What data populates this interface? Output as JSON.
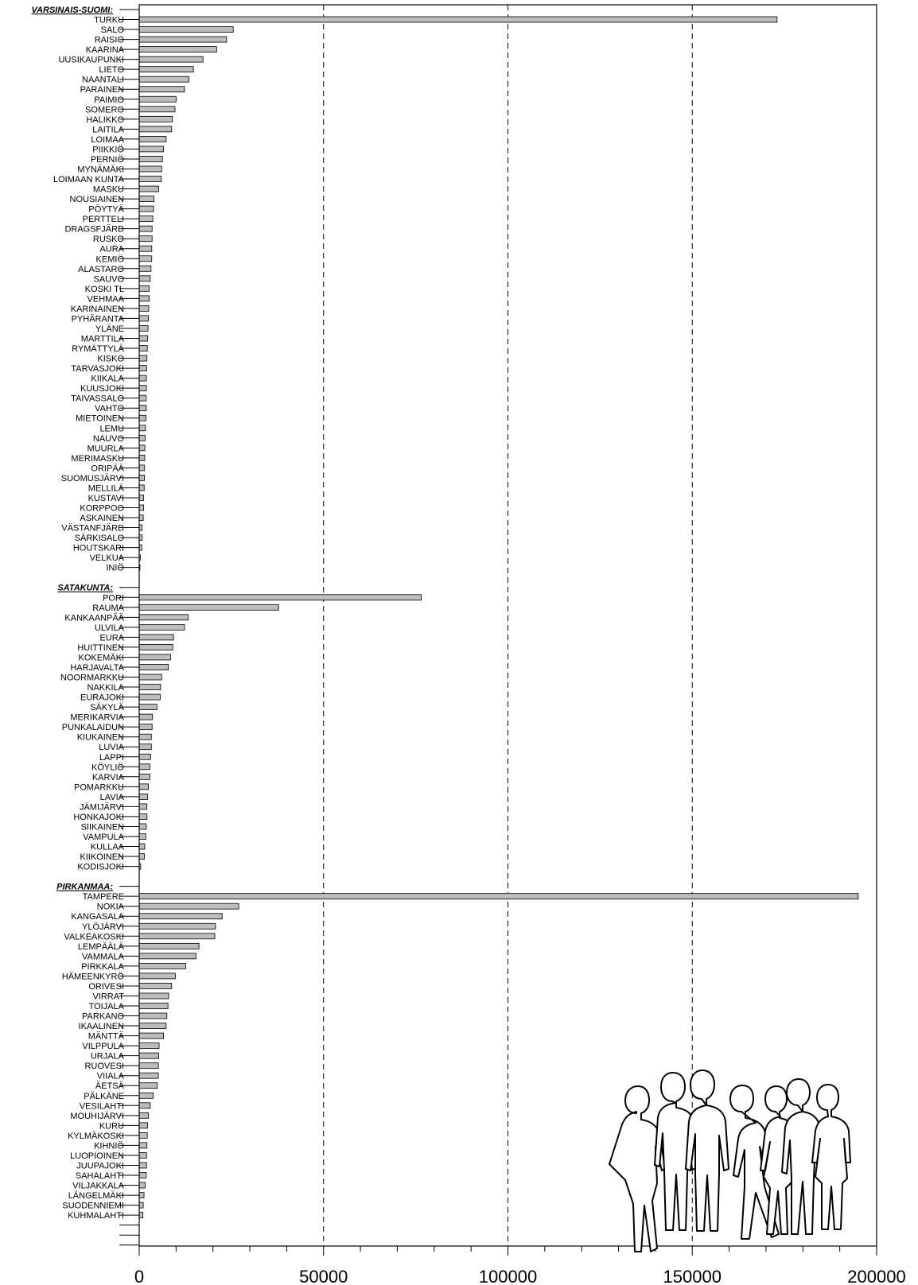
{
  "chart_data": {
    "type": "bar",
    "orientation": "horizontal",
    "title": "",
    "xlabel": "",
    "ylabel": "",
    "xlim": [
      0,
      200000
    ],
    "xticks": [
      0,
      50000,
      100000,
      150000,
      200000
    ],
    "tick_labels": [
      "0",
      "50000",
      "100000",
      "150000",
      "200000"
    ],
    "grid": "vertical dashed at 50000, 100000, 150000",
    "legend": "none",
    "bar_color": "#bdbdbd",
    "icon": "people-silhouette-icon",
    "groups": [
      {
        "name": "VARSINAIS-SUOMI:",
        "categories": [
          "TURKU",
          "SALO",
          "RAISIO",
          "KAARINA",
          "UUSIKAUPUNKI",
          "LIETO",
          "NAANTALI",
          "PARAINEN",
          "PAIMIO",
          "SOMERO",
          "HALIKKO",
          "LAITILA",
          "LOIMAA",
          "PIIKKIÖ",
          "PERNIÖ",
          "MYNÄMÄKI",
          "LOIMAAN KUNTA",
          "MASKU",
          "NOUSIAINEN",
          "PÖYTYÄ",
          "PERTTELI",
          "DRAGSFJÄRD",
          "RUSKO",
          "AURA",
          "KEMIÖ",
          "ALASTARO",
          "SAUVO",
          "KOSKI TL",
          "VEHMAA",
          "KARINAINEN",
          "PYHÄRANTA",
          "YLÄNE",
          "MARTTILA",
          "RYMÄTTYLÄ",
          "KISKO",
          "TARVASJOKI",
          "KIIKALA",
          "KUUSJOKI",
          "TAIVASSALO",
          "VAHTO",
          "MIETOINEN",
          "LEMU",
          "NAUVO",
          "MUURLA",
          "MERIMASKU",
          "ORIPÄÄ",
          "SUOMUSJÄRVI",
          "MELLILÄ",
          "KUSTAVI",
          "KORPPOO",
          "ASKAINEN",
          "VÄSTANFJÄRD",
          "SÄRKISALO",
          "HOUTSKARI",
          "VELKUA",
          "INIÖ"
        ],
        "values": [
          173000,
          25500,
          23700,
          21000,
          17300,
          14700,
          13500,
          12300,
          10000,
          9700,
          9000,
          8800,
          7300,
          6600,
          6300,
          6100,
          6000,
          5300,
          4000,
          3900,
          3700,
          3500,
          3500,
          3400,
          3400,
          3200,
          3000,
          2700,
          2700,
          2600,
          2500,
          2400,
          2300,
          2200,
          2100,
          2000,
          1950,
          1950,
          1900,
          1900,
          1850,
          1700,
          1600,
          1550,
          1500,
          1450,
          1400,
          1350,
          1200,
          1200,
          1100,
          800,
          800,
          700,
          300,
          200
        ]
      },
      {
        "name": "SATAKUNTA:",
        "categories": [
          "PORI",
          "RAUMA",
          "KANKAANPÄÄ",
          "ULVILA",
          "EURA",
          "HUITTINEN",
          "KOKEMÄKI",
          "HARJAVALTA",
          "NOORMARKKU",
          "NAKKILA",
          "EURAJOKI",
          "SÄKYLÄ",
          "MERIKARVIA",
          "PUNKALAIDUN",
          "KIUKAINEN",
          "LUVIA",
          "LAPPI",
          "KÖYLIÖ",
          "KARVIA",
          "POMARKKU",
          "LAVIA",
          "JÄMIJÄRVI",
          "HONKAJOKI",
          "SIIKAINEN",
          "VAMPULA",
          "KULLAA",
          "KIIKOINEN",
          "KODISJOKI"
        ],
        "values": [
          76500,
          37800,
          13300,
          12300,
          9300,
          9100,
          8500,
          7900,
          6100,
          5800,
          5700,
          4800,
          3600,
          3500,
          3300,
          3300,
          3100,
          2900,
          2900,
          2500,
          2300,
          2100,
          2100,
          1900,
          1800,
          1500,
          1400,
          400
        ]
      },
      {
        "name": "PIRKANMAA:",
        "categories": [
          "TAMPERE",
          "NOKIA",
          "KANGASALA",
          "YLÖJÄRVI",
          "VALKEAKOSKI",
          "LEMPÄÄLÄ",
          "VAMMALA",
          "PIRKKALA",
          "HÄMEENKYRÖ",
          "ORIVESI",
          "VIRRAT",
          "TOIJALA",
          "PARKANO",
          "IKAALINEN",
          "MÄNTTÄ",
          "VILPPULA",
          "URJALA",
          "RUOVESI",
          "VIIALA",
          "ÄETSÄ",
          "PÄLKÄNE",
          "VESILAHTI",
          "MOUHIJÄRVI",
          "KURU",
          "KYLMÄKOSKI",
          "KIHNIÖ",
          "LUOPIOINEN",
          "JUUPAJOKI",
          "SAHALAHTI",
          "VILJAKKALA",
          "LÄNGELMÄKI",
          "SUODENNIEMI",
          "KUHMALAHTI"
        ],
        "values": [
          195000,
          27000,
          22500,
          20700,
          20500,
          16200,
          15400,
          12600,
          9800,
          8800,
          8000,
          7800,
          7500,
          7300,
          6600,
          5400,
          5300,
          5200,
          5200,
          4900,
          3800,
          3000,
          2500,
          2300,
          2200,
          2100,
          2000,
          2000,
          1900,
          1600,
          1300,
          1100,
          1000
        ]
      }
    ]
  }
}
